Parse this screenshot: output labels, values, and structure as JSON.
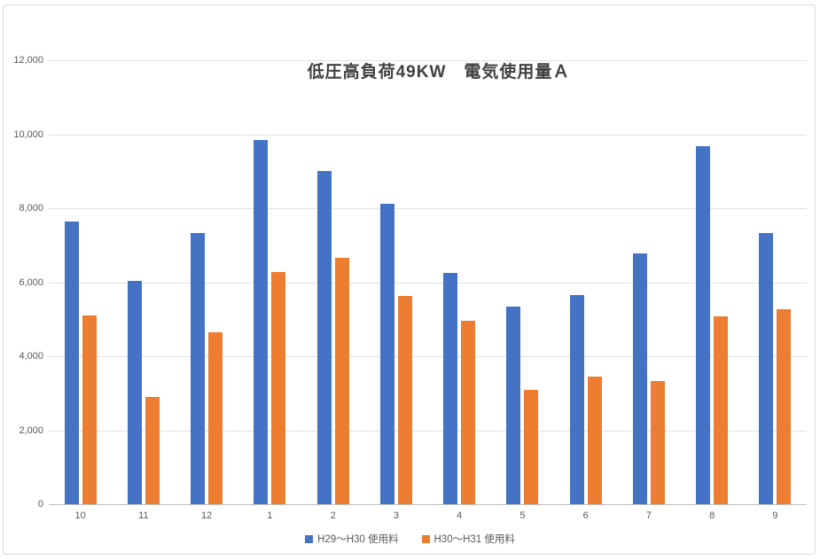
{
  "chart_data": {
    "type": "bar",
    "title": "低圧高負荷49KW　電気使用量Ａ",
    "categories": [
      "10",
      "11",
      "12",
      "1",
      "2",
      "3",
      "4",
      "5",
      "6",
      "7",
      "8",
      "9"
    ],
    "series": [
      {
        "name": "H29〜H30 使用料",
        "color": "#4472C4",
        "values": [
          7630,
          6040,
          7320,
          9850,
          9000,
          8120,
          6250,
          5350,
          5650,
          6790,
          9680,
          7340
        ]
      },
      {
        "name": "H30〜H31 使用料",
        "color": "#ED7D31",
        "values": [
          5090,
          2890,
          4640,
          6280,
          6670,
          5640,
          4950,
          3100,
          3450,
          3340,
          5080,
          5260
        ]
      }
    ],
    "xlabel": "",
    "ylabel": "",
    "ylim": [
      0,
      12000
    ],
    "ytick_step": 2000,
    "ytick_labels": [
      "0",
      "2,000",
      "4,000",
      "6,000",
      "8,000",
      "10,000",
      "12,000"
    ],
    "grid": true,
    "legend_position": "bottom",
    "colors": {
      "gridline": "#E2E2E2",
      "axis_line": "#BFBFBF",
      "tick_text": "#595959",
      "title_text": "#404040",
      "frame_border": "#D9D9D9",
      "background": "#FFFFFF"
    }
  }
}
